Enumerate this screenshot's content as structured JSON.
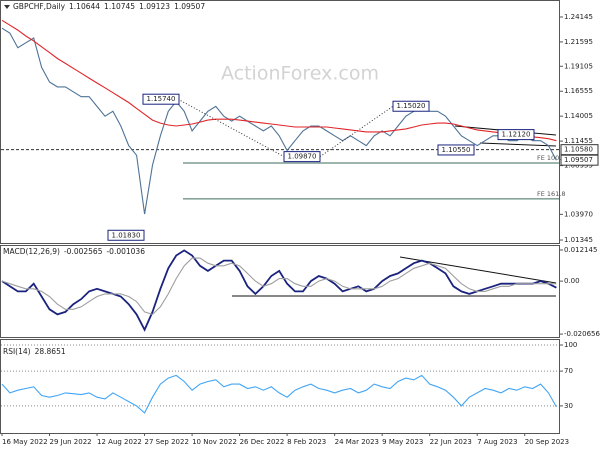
{
  "chart_data": [
    {
      "type": "line",
      "title": "GBPCHF,Daily",
      "header_values": [
        1.10644,
        1.10745,
        1.09123
      ],
      "watermark": "ActionForex.com",
      "ylim": [
        1.0104,
        1.2588
      ],
      "yticks": [
        1.24145,
        1.21595,
        1.19105,
        1.16555,
        1.14005,
        1.11455,
        1.08955,
        {
          "value": 1.0397,
          "label": "1.03970"
        },
        1.01345
      ],
      "series": [
        {
          "color": "#4f7396",
          "values": [
            1.23,
            1.225,
            1.21,
            1.215,
            1.22,
            1.19,
            1.175,
            1.17,
            1.17,
            1.165,
            1.16,
            1.16,
            1.15,
            1.14,
            1.145,
            1.13,
            1.11,
            1.1,
            1.04,
            1.09,
            1.12,
            1.145,
            1.155,
            1.145,
            1.125,
            1.135,
            1.145,
            1.15,
            1.14,
            1.135,
            1.14,
            1.135,
            1.13,
            1.125,
            1.13,
            1.12,
            1.105,
            1.115,
            1.125,
            1.13,
            1.13,
            1.125,
            1.12,
            1.115,
            1.12,
            1.115,
            1.11,
            1.12,
            1.125,
            1.12,
            1.13,
            1.14,
            1.145,
            1.15,
            1.145,
            1.145,
            1.14,
            1.13,
            1.12,
            1.115,
            1.11,
            1.115,
            1.12,
            1.12,
            1.115,
            1.115,
            1.12,
            1.115,
            1.115,
            1.11,
            1.09507
          ]
        },
        {
          "color": "#e0262a",
          "values": [
            1.238,
            1.233,
            1.228,
            1.222,
            1.217,
            1.211,
            1.205,
            1.199,
            1.194,
            1.189,
            1.184,
            1.179,
            1.174,
            1.169,
            1.164,
            1.159,
            1.154,
            1.148,
            1.142,
            1.136,
            1.133,
            1.131,
            1.13,
            1.131,
            1.132,
            1.134,
            1.136,
            1.137,
            1.137,
            1.137,
            1.136,
            1.135,
            1.134,
            1.133,
            1.132,
            1.131,
            1.13,
            1.129,
            1.129,
            1.129,
            1.129,
            1.129,
            1.128,
            1.127,
            1.126,
            1.125,
            1.124,
            1.124,
            1.124,
            1.125,
            1.126,
            1.127,
            1.129,
            1.131,
            1.132,
            1.133,
            1.133,
            1.132,
            1.13,
            1.128,
            1.126,
            1.125,
            1.124,
            1.123,
            1.122,
            1.121,
            1.12,
            1.119,
            1.118,
            1.117,
            1.115
          ]
        }
      ],
      "annotations": [
        {
          "value": 1.1574,
          "label": "1.15740"
        },
        {
          "value": 1.0987,
          "label": "1.09870"
        },
        {
          "value": 1.1502,
          "label": "1.15020"
        },
        {
          "value": 1.1212,
          "label": "1.12120"
        },
        {
          "value": 1.1055,
          "label": "1.10550"
        },
        {
          "value": 1.0183,
          "label": "1.01830"
        }
      ],
      "levels": [
        {
          "value": 1.0922,
          "label": "FE 100.0"
        },
        {
          "value": 1.0555,
          "label": "FE 161.8"
        }
      ],
      "marked_level": {
        "value": 1.1058,
        "label": "1.10580"
      }
    },
    {
      "type": "line",
      "title": "MACD(12,26,9)",
      "ylim": [
        -0.0218,
        0.0141
      ],
      "yticks": [
        0.012145,
        {
          "value": 0,
          "label": "0.00"
        },
        -0.020656
      ],
      "series": [
        {
          "color": "#1a237e",
          "values": [
            0,
            -0.002,
            -0.004,
            -0.004,
            -0.001,
            -0.006,
            -0.011,
            -0.013,
            -0.012,
            -0.009,
            -0.007,
            -0.004,
            -0.003,
            -0.004,
            -0.005,
            -0.006,
            -0.009,
            -0.013,
            -0.019,
            -0.012,
            -0.003,
            0.005,
            0.01,
            0.012,
            0.01,
            0.006,
            0.004,
            0.006,
            0.008,
            0.008,
            0.004,
            -0.002,
            -0.005,
            -0.002,
            0.002,
            0.004,
            -0.001,
            -0.004,
            -0.004,
            0,
            0.002,
            0.001,
            -0.001,
            -0.004,
            -0.003,
            -0.002,
            -0.004,
            -0.003,
            0,
            0.002,
            0.003,
            0.005,
            0.007,
            0.008,
            0.007,
            0.005,
            0.003,
            -0.002,
            -0.004,
            -0.005,
            -0.004,
            -0.003,
            -0.002,
            -0.001,
            -0.001,
            -0.001,
            -0.001,
            -0.001,
            0,
            -0.001,
            -0.002565
          ]
        },
        {
          "color": "#9e9e9e",
          "values": [
            0,
            -0.001,
            -0.002,
            -0.003,
            -0.003,
            -0.004,
            -0.006,
            -0.009,
            -0.011,
            -0.011,
            -0.01,
            -0.008,
            -0.006,
            -0.005,
            -0.005,
            -0.005,
            -0.006,
            -0.008,
            -0.012,
            -0.013,
            -0.01,
            -0.005,
            0.001,
            0.006,
            0.009,
            0.009,
            0.007,
            0.006,
            0.006,
            0.007,
            0.006,
            0.003,
            0,
            -0.002,
            -0.001,
            0.001,
            0.001,
            -0.001,
            -0.002,
            -0.002,
            0,
            0.001,
            0,
            -0.002,
            -0.003,
            -0.003,
            -0.003,
            -0.003,
            -0.002,
            0,
            0.001,
            0.003,
            0.005,
            0.006,
            0.007,
            0.006,
            0.005,
            0.002,
            -0.001,
            -0.003,
            -0.004,
            -0.004,
            -0.003,
            -0.002,
            -0.002,
            -0.001,
            -0.001,
            -0.001,
            -0.001,
            -0.001,
            -0.001036
          ]
        }
      ]
    },
    {
      "type": "line",
      "title": "RSI(14)",
      "ylim": [
        0,
        100
      ],
      "yticks": [
        100,
        70,
        30
      ],
      "categories": [
        "16 May 2022",
        null,
        null,
        null,
        null,
        null,
        "29 Jun 2022",
        null,
        null,
        null,
        null,
        null,
        "12 Aug 2022",
        null,
        null,
        null,
        null,
        null,
        "27 Sep 2022",
        null,
        null,
        null,
        null,
        null,
        "10 Nov 2022",
        null,
        null,
        null,
        null,
        null,
        "26 Dec 2022",
        null,
        null,
        null,
        null,
        null,
        "8 Feb 2023",
        null,
        null,
        null,
        null,
        null,
        "24 Mar 2023",
        null,
        null,
        null,
        null,
        null,
        "9 May 2023",
        null,
        null,
        null,
        null,
        null,
        "22 Jun 2023",
        null,
        null,
        null,
        null,
        null,
        "7 Aug 2023",
        null,
        null,
        null,
        null,
        null,
        "20 Sep 2023",
        null,
        null,
        null,
        null
      ],
      "series": [
        {
          "color": "#42a5f5",
          "values": [
            55,
            45,
            48,
            50,
            52,
            42,
            40,
            42,
            45,
            44,
            43,
            45,
            40,
            38,
            45,
            40,
            35,
            30,
            22,
            40,
            55,
            62,
            65,
            58,
            48,
            55,
            58,
            60,
            52,
            55,
            55,
            50,
            52,
            48,
            52,
            45,
            40,
            48,
            52,
            55,
            50,
            48,
            45,
            48,
            50,
            45,
            48,
            55,
            52,
            50,
            58,
            62,
            60,
            65,
            55,
            52,
            48,
            40,
            30,
            40,
            45,
            50,
            48,
            45,
            50,
            48,
            52,
            50,
            55,
            45,
            28.8651
          ]
        }
      ]
    }
  ]
}
